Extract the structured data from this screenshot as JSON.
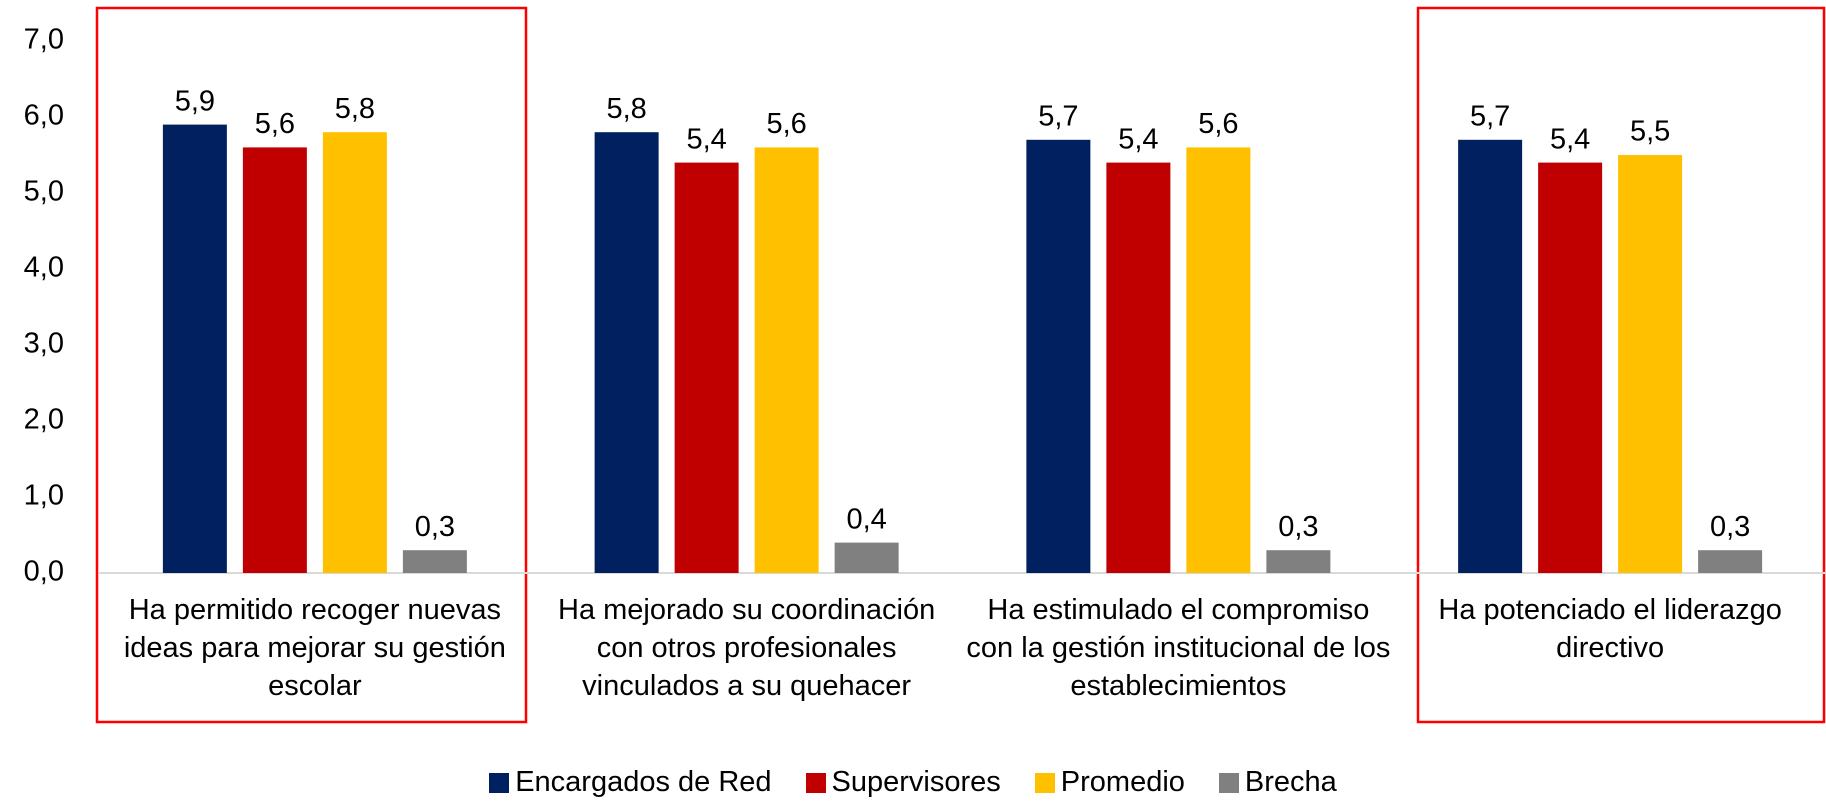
{
  "chart_data": {
    "type": "bar",
    "categories": [
      "Ha permitido recoger nuevas ideas para mejorar su gestión escolar",
      "Ha mejorado su coordinación con otros profesionales vinculados a su quehacer",
      "Ha estimulado el compromiso con la gestión institucional de los establecimientos",
      "Ha potenciado el liderazgo directivo"
    ],
    "series": [
      {
        "name": "Encargados de Red",
        "color": "#002060",
        "values": [
          5.9,
          5.8,
          5.7,
          5.7
        ],
        "value_labels": [
          "5,9",
          "5,8",
          "5,7",
          "5,7"
        ]
      },
      {
        "name": "Supervisores",
        "color": "#c00000",
        "values": [
          5.6,
          5.4,
          5.4,
          5.4
        ],
        "value_labels": [
          "5,6",
          "5,4",
          "5,4",
          "5,4"
        ]
      },
      {
        "name": "Promedio",
        "color": "#ffc000",
        "values": [
          5.8,
          5.6,
          5.6,
          5.5
        ],
        "value_labels": [
          "5,8",
          "5,6",
          "5,6",
          "5,5"
        ]
      },
      {
        "name": "Brecha",
        "color": "#808080",
        "values": [
          0.3,
          0.4,
          0.3,
          0.3
        ],
        "value_labels": [
          "0,3",
          "0,4",
          "0,3",
          "0,3"
        ]
      }
    ],
    "ylim": [
      0,
      7
    ],
    "yticks": [
      {
        "value": 0,
        "label": "0,0"
      },
      {
        "value": 1,
        "label": "1,0"
      },
      {
        "value": 2,
        "label": "2,0"
      },
      {
        "value": 3,
        "label": "3,0"
      },
      {
        "value": 4,
        "label": "4,0"
      },
      {
        "value": 5,
        "label": "5,0"
      },
      {
        "value": 6,
        "label": "6,0"
      },
      {
        "value": 7,
        "label": "7,0"
      }
    ],
    "grid": false,
    "legend": "bottom"
  }
}
